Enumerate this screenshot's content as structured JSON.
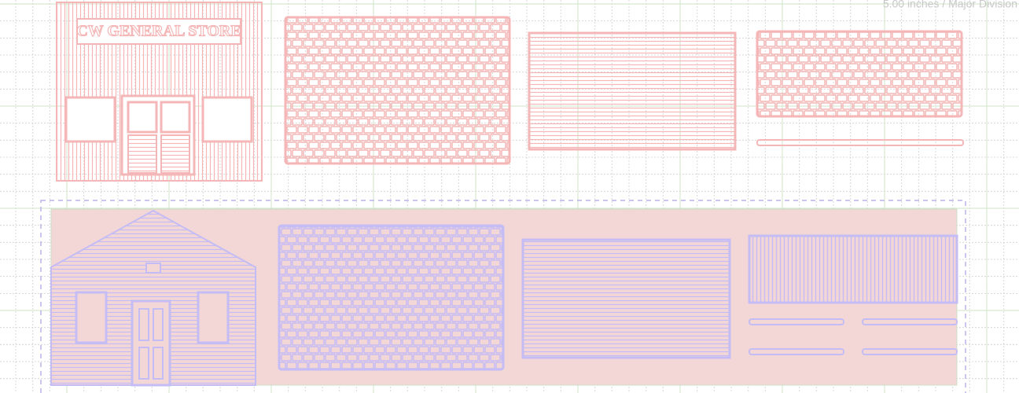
{
  "header": {
    "scale_label": "5.00 inches / Major Division"
  },
  "sign": {
    "text": "CW GENERAL STORE"
  }
}
